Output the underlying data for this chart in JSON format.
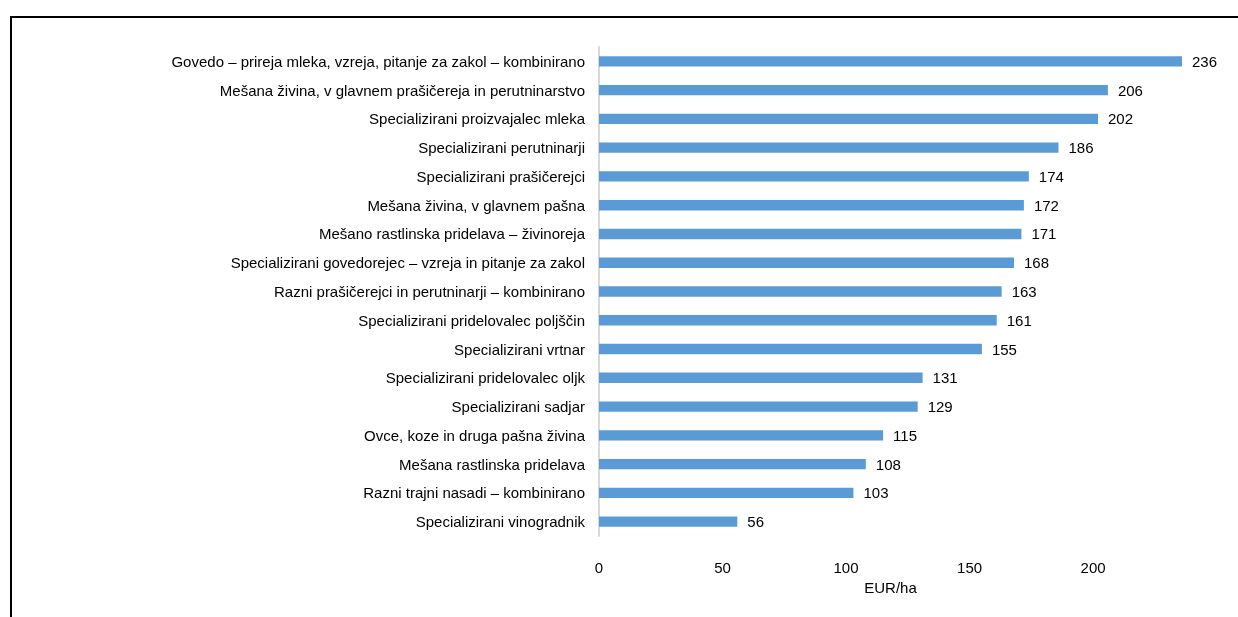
{
  "chart_data": {
    "type": "bar",
    "orientation": "horizontal",
    "categories": [
      "Govedo – prireja mleka, vzreja, pitanje za zakol – kombinirano",
      "Mešana živina, v glavnem prašičereja in perutninarstvo",
      "Specializirani proizvajalec mleka",
      "Specializirani perutninarji",
      "Specializirani prašičerejci",
      "Mešana živina, v glavnem pašna",
      "Mešano rastlinska pridelava – živinoreja",
      "Specializirani govedorejec – vzreja in pitanje za zakol",
      "Razni prašičerejci in perutninarji – kombinirano",
      "Specializirani pridelovalec poljščin",
      "Specializirani vrtnar",
      "Specializirani pridelovalec oljk",
      "Specializirani sadjar",
      "Ovce, koze in druga pašna živina",
      "Mešana rastlinska pridelava",
      "Razni trajni nasadi – kombinirano",
      "Specializirani vinogradnik"
    ],
    "values": [
      236,
      206,
      202,
      186,
      174,
      172,
      171,
      168,
      163,
      161,
      155,
      131,
      129,
      115,
      108,
      103,
      56
    ],
    "color": "#5b9bd5",
    "xlabel": "EUR/ha",
    "xlim": [
      0,
      236
    ],
    "xticks": [
      0,
      50,
      100,
      150,
      200
    ],
    "data_labels": true,
    "grid": false
  }
}
